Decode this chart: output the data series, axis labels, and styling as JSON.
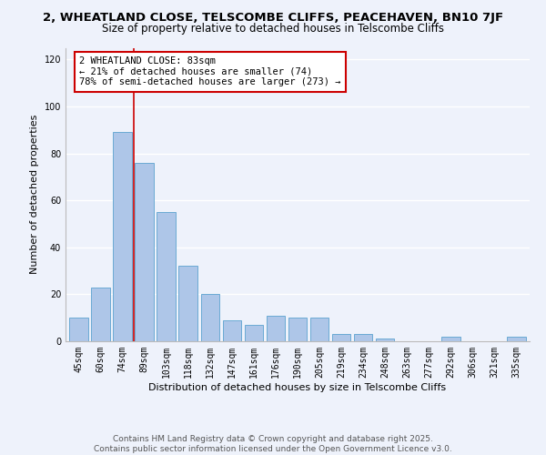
{
  "title1": "2, WHEATLAND CLOSE, TELSCOMBE CLIFFS, PEACEHAVEN, BN10 7JF",
  "title2": "Size of property relative to detached houses in Telscombe Cliffs",
  "xlabel": "Distribution of detached houses by size in Telscombe Cliffs",
  "ylabel": "Number of detached properties",
  "categories": [
    "45sqm",
    "60sqm",
    "74sqm",
    "89sqm",
    "103sqm",
    "118sqm",
    "132sqm",
    "147sqm",
    "161sqm",
    "176sqm",
    "190sqm",
    "205sqm",
    "219sqm",
    "234sqm",
    "248sqm",
    "263sqm",
    "277sqm",
    "292sqm",
    "306sqm",
    "321sqm",
    "335sqm"
  ],
  "values": [
    10,
    23,
    89,
    76,
    55,
    32,
    20,
    9,
    7,
    11,
    10,
    10,
    3,
    3,
    1,
    0,
    0,
    2,
    0,
    0,
    2
  ],
  "bar_color": "#aec6e8",
  "bar_edge_color": "#6aaad4",
  "vline_x": 2.5,
  "vline_color": "#cc0000",
  "annotation_title": "2 WHEATLAND CLOSE: 83sqm",
  "annotation_line1": "← 21% of detached houses are smaller (74)",
  "annotation_line2": "78% of semi-detached houses are larger (273) →",
  "annotation_box_color": "#cc0000",
  "ylim": [
    0,
    125
  ],
  "yticks": [
    0,
    20,
    40,
    60,
    80,
    100,
    120
  ],
  "footer1": "Contains HM Land Registry data © Crown copyright and database right 2025.",
  "footer2": "Contains public sector information licensed under the Open Government Licence v3.0.",
  "bg_color": "#eef2fb",
  "plot_bg_color": "#eef2fb",
  "grid_color": "#ffffff",
  "title_fontsize": 9.5,
  "subtitle_fontsize": 8.5,
  "axis_label_fontsize": 8,
  "tick_fontsize": 7,
  "annotation_fontsize": 7.5,
  "footer_fontsize": 6.5
}
